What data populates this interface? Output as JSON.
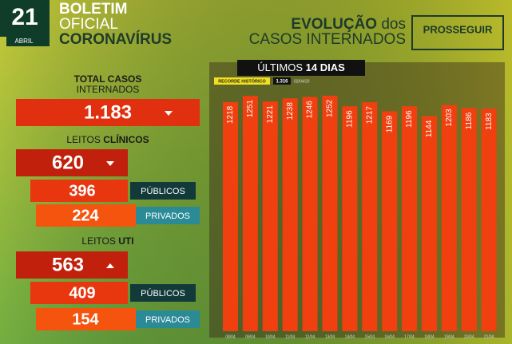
{
  "header": {
    "day": "21",
    "month": "ABRIL",
    "line1": "BOLETIM",
    "line2": "OFICIAL",
    "line3": "CORONAVÍRUS",
    "title_part1": "EVOLUÇÃO",
    "title_part2": "dos",
    "title_line2": "CASOS INTERNADOS",
    "logo": "PROSSEGUIR"
  },
  "total": {
    "label1": "TOTAL CASOS",
    "label2": "INTERNADOS",
    "value": "1.183"
  },
  "clinicos": {
    "label1": "LEITOS",
    "label2": "CLÍNICOS",
    "value": "620",
    "publicos": {
      "value": "396",
      "label": "PÚBLICOS"
    },
    "privados": {
      "value": "224",
      "label": "PRIVADOS"
    }
  },
  "uti": {
    "label1": "LEITOS",
    "label2": "UTI",
    "value": "563",
    "publicos": {
      "value": "409",
      "label": "PÚBLICOS"
    },
    "privados": {
      "value": "154",
      "label": "PRIVADOS"
    }
  },
  "chart_data": {
    "type": "bar",
    "title_part1": "ÚLTIMOS",
    "title_part2": "14 DIAS",
    "record_label": "RECORDE HISTÓRICO",
    "record_value": "1.316",
    "record_date": "02/04/20",
    "categories": [
      "08/04",
      "09/04",
      "10/04",
      "11/04",
      "12/04",
      "13/04",
      "14/04",
      "15/04",
      "16/04",
      "17/04",
      "18/04",
      "19/04",
      "20/04",
      "21/04"
    ],
    "values": [
      1218,
      1251,
      1221,
      1238,
      1246,
      1252,
      1196,
      1217,
      1169,
      1196,
      1144,
      1203,
      1186,
      1183
    ],
    "color": "#f0400f",
    "ylim": [
      0,
      1400
    ]
  }
}
